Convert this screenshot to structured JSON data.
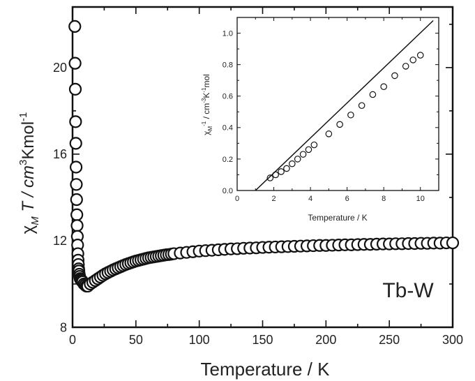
{
  "chart_data": [
    {
      "type": "scatter",
      "annotation": "Tb-W",
      "xlabel": "Temperature / K",
      "ylabel": {
        "chi": "χ",
        "sub": "M",
        "mid": " T / cm",
        "sup1": "3",
        "rest": "Kmol",
        "sup2": "-1"
      },
      "xlim": [
        0,
        300
      ],
      "ylim": [
        8,
        22.8
      ],
      "xticks": [
        0,
        50,
        100,
        150,
        200,
        250,
        300
      ],
      "yticks": [
        8,
        12,
        16,
        20
      ],
      "series": [
        {
          "x": [
            1.8,
            2,
            2.2,
            2.4,
            2.6,
            2.8,
            3,
            3.2,
            3.4,
            3.6,
            3.8,
            4,
            4.2,
            4.4,
            4.6,
            4.8,
            5,
            5.3,
            5.6,
            6,
            6.5,
            7,
            7.5,
            8,
            9,
            10,
            11,
            12,
            14,
            16,
            18,
            20,
            22,
            24,
            26,
            28,
            30,
            32,
            34,
            36,
            38,
            40,
            42,
            44,
            46,
            48,
            50,
            52,
            54,
            56,
            58,
            60,
            62,
            64,
            66,
            68,
            70,
            72,
            74,
            76,
            78,
            80,
            85,
            90,
            95,
            100,
            105,
            110,
            115,
            120,
            125,
            130,
            135,
            140,
            145,
            150,
            155,
            160,
            165,
            170,
            175,
            180,
            185,
            190,
            195,
            200,
            205,
            210,
            215,
            220,
            225,
            230,
            235,
            240,
            245,
            250,
            255,
            260,
            265,
            270,
            275,
            280,
            285,
            290,
            295,
            300
          ],
          "y": [
            21.9,
            20.2,
            19.0,
            17.5,
            16.5,
            15.4,
            14.6,
            13.9,
            13.2,
            12.7,
            12.2,
            11.8,
            11.4,
            11.1,
            10.9,
            10.7,
            10.6,
            10.45,
            10.35,
            10.25,
            10.2,
            10.15,
            10.15,
            10.1,
            10.0,
            9.95,
            9.9,
            9.9,
            10.0,
            10.08,
            10.16,
            10.24,
            10.32,
            10.4,
            10.47,
            10.53,
            10.59,
            10.65,
            10.7,
            10.75,
            10.8,
            10.85,
            10.9,
            10.94,
            10.98,
            11.02,
            11.06,
            11.09,
            11.12,
            11.15,
            11.18,
            11.21,
            11.23,
            11.25,
            11.27,
            11.29,
            11.31,
            11.33,
            11.35,
            11.36,
            11.38,
            11.4,
            11.43,
            11.46,
            11.49,
            11.52,
            11.54,
            11.56,
            11.58,
            11.6,
            11.62,
            11.63,
            11.65,
            11.66,
            11.67,
            11.69,
            11.7,
            11.71,
            11.72,
            11.73,
            11.74,
            11.75,
            11.76,
            11.77,
            11.78,
            11.78,
            11.79,
            11.8,
            11.81,
            11.81,
            11.82,
            11.83,
            11.83,
            11.84,
            11.85,
            11.85,
            11.86,
            11.86,
            11.87,
            11.87,
            11.88,
            11.88,
            11.89,
            11.89,
            11.9,
            11.9
          ]
        }
      ]
    },
    {
      "type": "scatter",
      "xlabel": "Temperature / K",
      "ylabel": {
        "chi": "χ",
        "sub": "M",
        "sup0": "-1",
        "mid": " / cm",
        "sup1": "-3",
        "mid2": "K",
        "sup2": "-1",
        "rest": "mol"
      },
      "xlim": [
        0,
        11
      ],
      "ylim": [
        0,
        1.1
      ],
      "xticks": [
        0,
        2,
        4,
        6,
        8,
        10
      ],
      "yticks": [
        0.0,
        0.2,
        0.4,
        0.6,
        0.8,
        1.0
      ],
      "series": [
        {
          "x": [
            1.8,
            2.1,
            2.4,
            2.7,
            3.0,
            3.3,
            3.6,
            3.9,
            4.2,
            5.0,
            5.6,
            6.2,
            6.8,
            7.4,
            8.0,
            8.6,
            9.2,
            9.6,
            10.0
          ],
          "y": [
            0.08,
            0.1,
            0.12,
            0.14,
            0.17,
            0.2,
            0.23,
            0.26,
            0.29,
            0.36,
            0.42,
            0.48,
            0.54,
            0.61,
            0.66,
            0.73,
            0.79,
            0.83,
            0.86
          ]
        }
      ],
      "fit_line": {
        "x": [
          1.0,
          10.7
        ],
        "y": [
          0.0,
          1.08
        ]
      }
    }
  ]
}
